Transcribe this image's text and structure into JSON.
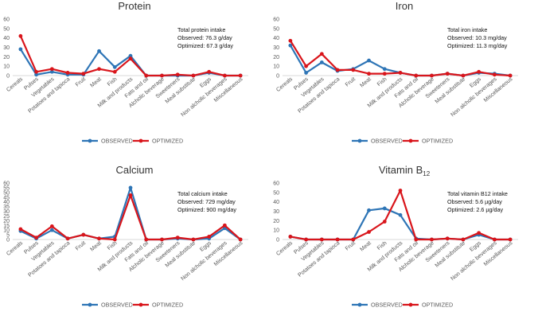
{
  "chart_data": [
    {
      "type": "line",
      "title": "Protein",
      "title_sub": "",
      "categories": [
        "Cereals",
        "Pulses",
        "Vegetables",
        "Potatoes and tapioca",
        "Fruit",
        "Meat",
        "Fish",
        "Milk and products",
        "Fats and oil",
        "Alcholic beverage",
        "Sweeteners",
        "Meal substitute",
        "Eggs",
        "Non alcholic beverages",
        "Miscellaneous"
      ],
      "ylim": [
        0,
        60
      ],
      "yticks": [
        0,
        10,
        20,
        30,
        40,
        50,
        60
      ],
      "series": [
        {
          "name": "OBSERVED",
          "color": "#2e75b6",
          "values": [
            28,
            1,
            4,
            1,
            1,
            26,
            9,
            21,
            0,
            0,
            0,
            0,
            3,
            0,
            0
          ]
        },
        {
          "name": "OPTIMIZED",
          "color": "#d9151b",
          "values": [
            42,
            4,
            7,
            3,
            2,
            7,
            4,
            18,
            0,
            0,
            1,
            0,
            4,
            0,
            0
          ]
        }
      ],
      "info": [
        "Total protein intake",
        "Observed: 76.3 g/day",
        "Optimized: 67.3 g/day"
      ]
    },
    {
      "type": "line",
      "title": "Iron",
      "title_sub": "",
      "categories": [
        "Cereals",
        "Pulses",
        "Vegetables",
        "Potatoes and tapioca",
        "Fruit",
        "Meat",
        "Fish",
        "Milk and products",
        "Fats and oil",
        "Alcholic beverage",
        "Sweeteners",
        "Meal substitute",
        "Eggs",
        "Non alcholic beverages",
        "Miscellaneous"
      ],
      "ylim": [
        0,
        60
      ],
      "yticks": [
        0,
        10,
        20,
        30,
        40,
        50,
        60
      ],
      "series": [
        {
          "name": "OBSERVED",
          "color": "#2e75b6",
          "values": [
            32,
            3,
            14,
            5,
            7,
            16,
            7,
            3,
            0,
            0,
            2,
            0,
            3,
            2,
            0
          ]
        },
        {
          "name": "OPTIMIZED",
          "color": "#d9151b",
          "values": [
            37,
            10,
            23,
            6,
            6,
            2,
            2,
            3,
            0,
            0,
            2,
            0,
            4,
            1,
            0
          ]
        }
      ],
      "info": [
        "Total iron intake",
        "Observed: 10.3 mg/day",
        "Optimized: 11.3 mg/day"
      ]
    },
    {
      "type": "line",
      "title": "Calcium",
      "title_sub": "",
      "categories": [
        "Cereals",
        "Pulses",
        "Vegetables",
        "Potatoes and tapioca",
        "Fruit",
        "Meat",
        "Fish",
        "Milk and products",
        "Fats and oil",
        "Alcholic beverage",
        "Sweeteners",
        "Meal substitute",
        "Eggs",
        "Non alcholic beverages",
        "Miscellaneous"
      ],
      "ylim": [
        0,
        60
      ],
      "yticks": [
        0,
        5,
        10,
        15,
        20,
        25,
        30,
        35,
        40,
        45,
        50,
        55,
        60
      ],
      "series": [
        {
          "name": "OBSERVED",
          "color": "#2e75b6",
          "values": [
            9,
            1,
            10,
            1,
            5,
            1,
            3,
            55,
            0,
            0,
            1,
            0,
            1,
            12,
            0
          ]
        },
        {
          "name": "OPTIMIZED",
          "color": "#d9151b",
          "values": [
            11,
            2,
            14,
            1,
            5,
            1,
            0,
            47,
            0,
            0,
            2,
            0,
            3,
            15,
            0
          ]
        }
      ],
      "info": [
        "Total calcium intake",
        "Observed: 729 mg/day",
        "Optimized: 900 mg/day"
      ]
    },
    {
      "type": "line",
      "title": "Vitamin B",
      "title_sub": "12",
      "categories": [
        "Cereals",
        "Pulses",
        "Vegetables",
        "Potatoes and tapioca",
        "Fruit",
        "Meat",
        "Fish",
        "Milk and products",
        "Fats and oil",
        "Alcholic beverage",
        "Sweeteners",
        "Meal substitute",
        "Eggs",
        "Non alcholic beverages",
        "Miscellaneous"
      ],
      "ylim": [
        0,
        60
      ],
      "yticks": [
        0,
        10,
        20,
        30,
        40,
        50,
        60
      ],
      "series": [
        {
          "name": "OBSERVED",
          "color": "#2e75b6",
          "values": [
            3,
            0,
            0,
            0,
            0,
            31,
            33,
            26,
            1,
            0,
            1,
            0,
            5,
            0,
            0
          ]
        },
        {
          "name": "OPTIMIZED",
          "color": "#d9151b",
          "values": [
            3,
            0,
            0,
            0,
            0,
            8,
            19,
            52,
            0,
            0,
            1,
            0,
            7,
            0,
            0
          ]
        }
      ],
      "info": [
        "Total vitamin B12 intake",
        "Observed: 5.6 µg/day",
        "Optimized: 2.6 µg/day"
      ]
    }
  ]
}
